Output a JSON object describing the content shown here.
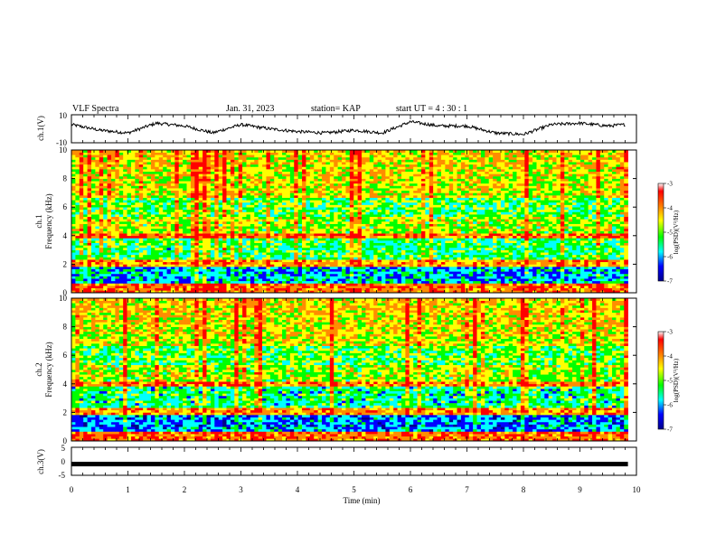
{
  "header": {
    "title": "VLF Spectra",
    "date": "Jan. 31, 2023",
    "station": "station= KAP",
    "start": "start UT =  4 : 30 : 1"
  },
  "chart_data": [
    {
      "type": "line",
      "panel": "ch1-waveform",
      "ylabel": "ch.1(V)",
      "ylim": [
        -10,
        10
      ],
      "yticks": [
        "10",
        "-10"
      ],
      "xlim": [
        0,
        10
      ],
      "color": "#000000",
      "x": [
        0,
        0.5,
        1.0,
        1.5,
        2.0,
        2.5,
        3.0,
        3.5,
        4.0,
        4.5,
        5.0,
        5.5,
        6.0,
        6.5,
        7.0,
        7.5,
        8.0,
        8.5,
        9.0,
        9.5,
        9.8
      ],
      "y": [
        3,
        -1,
        -3,
        4,
        2,
        -3,
        3,
        0,
        -2,
        -3,
        -1,
        -3,
        5,
        2,
        2,
        -3,
        -4,
        3,
        4,
        2,
        3
      ]
    },
    {
      "type": "heatmap",
      "panel": "ch1-spectrogram",
      "ylabel": "ch.1",
      "ylabel2": "Frequency (kHz)",
      "ylim": [
        0,
        10
      ],
      "yticks": [
        "0",
        "2",
        "4",
        "6",
        "8",
        "10"
      ],
      "xlim": [
        0,
        10
      ],
      "data_extent_x": 9.85,
      "colorbar": {
        "label": "log(PSD)(V²/Hz)",
        "range": [
          -7,
          -3
        ],
        "ticks": [
          "-3",
          "-4",
          "-5",
          "-6",
          "-7"
        ],
        "colors": [
          "#ff0000",
          "#ff8c00",
          "#ffff00",
          "#00ff00",
          "#00ffff",
          "#0000ff",
          "#00008b"
        ]
      }
    },
    {
      "type": "heatmap",
      "panel": "ch2-spectrogram",
      "ylabel": "ch.2",
      "ylabel2": "Frequency (kHz)",
      "ylim": [
        0,
        10
      ],
      "yticks": [
        "0",
        "2",
        "4",
        "6",
        "8",
        "10"
      ],
      "xlim": [
        0,
        10
      ],
      "data_extent_x": 9.85,
      "colorbar": {
        "label": "log(PSD)(V²/Hz)",
        "range": [
          -7,
          -3
        ],
        "ticks": [
          "-3",
          "-4",
          "-5",
          "-6",
          "-7"
        ],
        "colors": [
          "#ff0000",
          "#ff8c00",
          "#ffff00",
          "#00ff00",
          "#00ffff",
          "#0000ff",
          "#00008b"
        ]
      }
    },
    {
      "type": "line",
      "panel": "ch3-waveform",
      "ylabel": "ch.3(V)",
      "ylim": [
        -5,
        5
      ],
      "yticks": [
        "5",
        "0",
        "-5"
      ],
      "xlim": [
        0,
        10
      ],
      "xticks": [
        "0",
        "1",
        "2",
        "3",
        "4",
        "5",
        "6",
        "7",
        "8",
        "9",
        "10"
      ],
      "xlabel": "Time (min)",
      "constant_value": -1
    }
  ]
}
